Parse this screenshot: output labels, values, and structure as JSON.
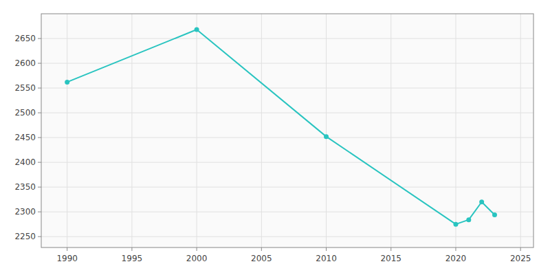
{
  "chart_data": {
    "type": "line",
    "x": [
      1990,
      2000,
      2010,
      2020,
      2021,
      2022,
      2023
    ],
    "values": [
      2562,
      2668,
      2452,
      2275,
      2284,
      2320,
      2294
    ],
    "color": "#29c4c0",
    "marker": "circle",
    "xlim": [
      1988,
      2026
    ],
    "ylim": [
      2228,
      2700
    ],
    "xticks": [
      1990,
      1995,
      2000,
      2005,
      2010,
      2015,
      2020,
      2025
    ],
    "yticks": [
      2250,
      2300,
      2350,
      2400,
      2450,
      2500,
      2550,
      2600,
      2650
    ],
    "grid": true
  }
}
